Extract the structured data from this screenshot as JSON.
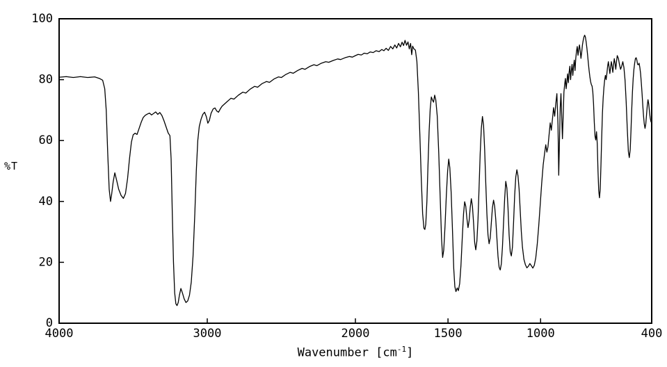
{
  "chart_data": {
    "type": "line",
    "title": "",
    "ylabel": "%T",
    "xlabel": "Wavenumber [cm-1]",
    "xlabel_parts": {
      "main": "Wavenumber [cm",
      "sup": "-1",
      "close": "]"
    },
    "x_axis": {
      "max": 4000,
      "break": 2000,
      "min": 400,
      "reversed": true,
      "scale_note": "split linear axis: 4000-2000 on left half, 2000-400 on right half",
      "ticks": [
        4000,
        3000,
        2000,
        1500,
        1000,
        400
      ]
    },
    "y_axis": {
      "min": 0,
      "max": 100,
      "ticks": [
        0,
        20,
        40,
        60,
        80,
        100
      ]
    },
    "grid": false,
    "legend": false,
    "line_color": "#000000",
    "frame_color": "#000000",
    "background": "#ffffff",
    "points": [
      [
        4000,
        80.8
      ],
      [
        3952,
        81
      ],
      [
        3904,
        80.7
      ],
      [
        3856,
        81
      ],
      [
        3808,
        80.7
      ],
      [
        3760,
        80.9
      ],
      [
        3728,
        80.4
      ],
      [
        3706,
        79.8
      ],
      [
        3692,
        77
      ],
      [
        3682,
        70
      ],
      [
        3672,
        56
      ],
      [
        3662,
        44
      ],
      [
        3653,
        40
      ],
      [
        3645,
        42.5
      ],
      [
        3635,
        46.5
      ],
      [
        3624,
        49.4
      ],
      [
        3612,
        47
      ],
      [
        3598,
        44
      ],
      [
        3582,
        42
      ],
      [
        3566,
        41
      ],
      [
        3552,
        42.6
      ],
      [
        3538,
        47.5
      ],
      [
        3525,
        54
      ],
      [
        3512,
        59.5
      ],
      [
        3500,
        61.9
      ],
      [
        3487,
        62.4
      ],
      [
        3474,
        62
      ],
      [
        3460,
        64
      ],
      [
        3446,
        66
      ],
      [
        3432,
        67.6
      ],
      [
        3418,
        68.3
      ],
      [
        3404,
        68.7
      ],
      [
        3390,
        69
      ],
      [
        3376,
        68.4
      ],
      [
        3362,
        68.9
      ],
      [
        3348,
        69.4
      ],
      [
        3334,
        68.6
      ],
      [
        3320,
        69.2
      ],
      [
        3306,
        68.2
      ],
      [
        3292,
        66.5
      ],
      [
        3278,
        64.5
      ],
      [
        3264,
        62.5
      ],
      [
        3252,
        61.6
      ],
      [
        3244,
        54
      ],
      [
        3236,
        36
      ],
      [
        3228,
        20
      ],
      [
        3220,
        10
      ],
      [
        3212,
        6.4
      ],
      [
        3204,
        5.8
      ],
      [
        3196,
        6.8
      ],
      [
        3188,
        9.2
      ],
      [
        3178,
        11.4
      ],
      [
        3168,
        10
      ],
      [
        3156,
        8
      ],
      [
        3144,
        6.8
      ],
      [
        3132,
        7.3
      ],
      [
        3120,
        9.2
      ],
      [
        3108,
        13.5
      ],
      [
        3096,
        22
      ],
      [
        3084,
        36
      ],
      [
        3074,
        50
      ],
      [
        3064,
        60
      ],
      [
        3054,
        64.6
      ],
      [
        3042,
        67
      ],
      [
        3030,
        68.6
      ],
      [
        3018,
        69.3
      ],
      [
        3006,
        67.8
      ],
      [
        2996,
        65.7
      ],
      [
        2986,
        66.6
      ],
      [
        2974,
        69
      ],
      [
        2960,
        70.4
      ],
      [
        2948,
        70.7
      ],
      [
        2936,
        69.7
      ],
      [
        2924,
        69.3
      ],
      [
        2912,
        70.4
      ],
      [
        2900,
        71.3
      ],
      [
        2870,
        72.6
      ],
      [
        2840,
        73.9
      ],
      [
        2820,
        73.6
      ],
      [
        2790,
        74.9
      ],
      [
        2760,
        75.9
      ],
      [
        2740,
        75.6
      ],
      [
        2710,
        76.9
      ],
      [
        2680,
        77.8
      ],
      [
        2660,
        77.5
      ],
      [
        2630,
        78.7
      ],
      [
        2600,
        79.4
      ],
      [
        2580,
        79.1
      ],
      [
        2550,
        80.2
      ],
      [
        2520,
        80.9
      ],
      [
        2500,
        80.7
      ],
      [
        2470,
        81.7
      ],
      [
        2440,
        82.4
      ],
      [
        2420,
        82.1
      ],
      [
        2390,
        83
      ],
      [
        2360,
        83.7
      ],
      [
        2340,
        83.4
      ],
      [
        2310,
        84.3
      ],
      [
        2280,
        84.9
      ],
      [
        2260,
        84.6
      ],
      [
        2230,
        85.4
      ],
      [
        2200,
        85.9
      ],
      [
        2180,
        85.7
      ],
      [
        2150,
        86.3
      ],
      [
        2120,
        86.8
      ],
      [
        2100,
        86.6
      ],
      [
        2070,
        87.2
      ],
      [
        2040,
        87.6
      ],
      [
        2020,
        87.4
      ],
      [
        2000,
        87.9
      ],
      [
        1985,
        88.3
      ],
      [
        1968,
        88.1
      ],
      [
        1952,
        88.7
      ],
      [
        1936,
        88.5
      ],
      [
        1920,
        89.1
      ],
      [
        1904,
        88.9
      ],
      [
        1888,
        89.5
      ],
      [
        1872,
        89.2
      ],
      [
        1858,
        89.9
      ],
      [
        1846,
        89.5
      ],
      [
        1834,
        90.3
      ],
      [
        1822,
        89.6
      ],
      [
        1810,
        90.9
      ],
      [
        1798,
        90.1
      ],
      [
        1787,
        91.4
      ],
      [
        1777,
        90.4
      ],
      [
        1767,
        91.9
      ],
      [
        1757,
        90.8
      ],
      [
        1748,
        92.3
      ],
      [
        1740,
        91.2
      ],
      [
        1732,
        92.9
      ],
      [
        1724,
        91.3
      ],
      [
        1716,
        92.4
      ],
      [
        1709,
        90.1
      ],
      [
        1702,
        91.9
      ],
      [
        1696,
        88.2
      ],
      [
        1691,
        91
      ],
      [
        1685,
        90.2
      ],
      [
        1676,
        89.7
      ],
      [
        1668,
        86
      ],
      [
        1660,
        76
      ],
      [
        1652,
        62
      ],
      [
        1644,
        47
      ],
      [
        1637,
        36
      ],
      [
        1630,
        31.2
      ],
      [
        1625,
        30.8
      ],
      [
        1620,
        32.5
      ],
      [
        1614,
        40
      ],
      [
        1608,
        52
      ],
      [
        1602,
        63
      ],
      [
        1596,
        70.5
      ],
      [
        1590,
        74.3
      ],
      [
        1584,
        73.3
      ],
      [
        1578,
        72.6
      ],
      [
        1572,
        74.9
      ],
      [
        1566,
        73.4
      ],
      [
        1558,
        68
      ],
      [
        1550,
        56
      ],
      [
        1542,
        41
      ],
      [
        1535,
        28
      ],
      [
        1529,
        21.6
      ],
      [
        1523,
        24
      ],
      [
        1516,
        32
      ],
      [
        1509,
        42
      ],
      [
        1502,
        50
      ],
      [
        1496,
        53.9
      ],
      [
        1490,
        51
      ],
      [
        1483,
        43
      ],
      [
        1476,
        31
      ],
      [
        1469,
        18
      ],
      [
        1463,
        12
      ],
      [
        1457,
        10.4
      ],
      [
        1450,
        11.6
      ],
      [
        1444,
        10.7
      ],
      [
        1437,
        13
      ],
      [
        1430,
        19
      ],
      [
        1423,
        28
      ],
      [
        1416,
        36
      ],
      [
        1410,
        39.9
      ],
      [
        1404,
        38.4
      ],
      [
        1398,
        34.5
      ],
      [
        1392,
        31.4
      ],
      [
        1386,
        33.6
      ],
      [
        1380,
        38
      ],
      [
        1374,
        40.9
      ],
      [
        1368,
        38.4
      ],
      [
        1362,
        33
      ],
      [
        1356,
        26.5
      ],
      [
        1350,
        24.1
      ],
      [
        1344,
        27
      ],
      [
        1338,
        34
      ],
      [
        1332,
        45
      ],
      [
        1326,
        56
      ],
      [
        1320,
        64
      ],
      [
        1314,
        67.9
      ],
      [
        1308,
        65
      ],
      [
        1302,
        57
      ],
      [
        1296,
        46
      ],
      [
        1290,
        36
      ],
      [
        1284,
        29
      ],
      [
        1278,
        26.1
      ],
      [
        1272,
        28
      ],
      [
        1266,
        33
      ],
      [
        1260,
        38
      ],
      [
        1254,
        40.4
      ],
      [
        1248,
        38.4
      ],
      [
        1242,
        34
      ],
      [
        1236,
        28
      ],
      [
        1230,
        22
      ],
      [
        1224,
        18.4
      ],
      [
        1218,
        17.5
      ],
      [
        1212,
        19.5
      ],
      [
        1206,
        25
      ],
      [
        1200,
        33
      ],
      [
        1194,
        41
      ],
      [
        1188,
        46.6
      ],
      [
        1182,
        44.4
      ],
      [
        1176,
        38
      ],
      [
        1170,
        29
      ],
      [
        1164,
        23.5
      ],
      [
        1158,
        22.1
      ],
      [
        1152,
        25
      ],
      [
        1146,
        33
      ],
      [
        1140,
        42
      ],
      [
        1134,
        48
      ],
      [
        1128,
        50.4
      ],
      [
        1122,
        48.4
      ],
      [
        1116,
        44
      ],
      [
        1110,
        37
      ],
      [
        1104,
        30
      ],
      [
        1098,
        25
      ],
      [
        1090,
        21
      ],
      [
        1082,
        19.2
      ],
      [
        1074,
        18.2
      ],
      [
        1066,
        18.7
      ],
      [
        1058,
        19.6
      ],
      [
        1050,
        18.9
      ],
      [
        1042,
        18.1
      ],
      [
        1034,
        19
      ],
      [
        1026,
        21.5
      ],
      [
        1018,
        26
      ],
      [
        1010,
        32
      ],
      [
        1002,
        39
      ],
      [
        994,
        46
      ],
      [
        986,
        52
      ],
      [
        978,
        56
      ],
      [
        972,
        58.6
      ],
      [
        966,
        56.2
      ],
      [
        960,
        58
      ],
      [
        954,
        62
      ],
      [
        948,
        65.8
      ],
      [
        942,
        63.4
      ],
      [
        936,
        67
      ],
      [
        930,
        70.8
      ],
      [
        924,
        68
      ],
      [
        918,
        72
      ],
      [
        912,
        75.4
      ],
      [
        906,
        65
      ],
      [
        902,
        48.6
      ],
      [
        898,
        60
      ],
      [
        894,
        70.8
      ],
      [
        890,
        75.4
      ],
      [
        886,
        68
      ],
      [
        882,
        60.6
      ],
      [
        878,
        68
      ],
      [
        874,
        75.9
      ],
      [
        870,
        78.4
      ],
      [
        866,
        80.4
      ],
      [
        862,
        77
      ],
      [
        858,
        79.4
      ],
      [
        854,
        81.9
      ],
      [
        850,
        79
      ],
      [
        846,
        82.4
      ],
      [
        842,
        84.4
      ],
      [
        838,
        80
      ],
      [
        834,
        83
      ],
      [
        830,
        85
      ],
      [
        826,
        81.4
      ],
      [
        822,
        84.4
      ],
      [
        818,
        86.4
      ],
      [
        814,
        83
      ],
      [
        810,
        87
      ],
      [
        806,
        89.4
      ],
      [
        802,
        90.9
      ],
      [
        798,
        88
      ],
      [
        794,
        90
      ],
      [
        790,
        91.4
      ],
      [
        786,
        89.4
      ],
      [
        782,
        87
      ],
      [
        778,
        89
      ],
      [
        774,
        91.4
      ],
      [
        770,
        92.9
      ],
      [
        766,
        94
      ],
      [
        762,
        94.6
      ],
      [
        758,
        94
      ],
      [
        754,
        92.4
      ],
      [
        750,
        90.4
      ],
      [
        746,
        88
      ],
      [
        742,
        85.4
      ],
      [
        738,
        83
      ],
      [
        734,
        81
      ],
      [
        730,
        79.4
      ],
      [
        726,
        78.4
      ],
      [
        722,
        77.9
      ],
      [
        718,
        76
      ],
      [
        714,
        72
      ],
      [
        710,
        66
      ],
      [
        706,
        61.4
      ],
      [
        702,
        60.2
      ],
      [
        698,
        62.9
      ],
      [
        694,
        59
      ],
      [
        690,
        50
      ],
      [
        686,
        43.5
      ],
      [
        682,
        41.2
      ],
      [
        678,
        44
      ],
      [
        674,
        52
      ],
      [
        670,
        61
      ],
      [
        666,
        69
      ],
      [
        662,
        74
      ],
      [
        658,
        77.4
      ],
      [
        654,
        79.9
      ],
      [
        650,
        81.4
      ],
      [
        646,
        80
      ],
      [
        642,
        82
      ],
      [
        638,
        84.4
      ],
      [
        634,
        85.9
      ],
      [
        630,
        84
      ],
      [
        626,
        82
      ],
      [
        622,
        84
      ],
      [
        618,
        85.9
      ],
      [
        614,
        84.4
      ],
      [
        610,
        82.4
      ],
      [
        606,
        84.9
      ],
      [
        602,
        86.9
      ],
      [
        598,
        85.4
      ],
      [
        594,
        83.4
      ],
      [
        590,
        85.9
      ],
      [
        586,
        87.9
      ],
      [
        580,
        87
      ],
      [
        574,
        85
      ],
      [
        568,
        83.4
      ],
      [
        562,
        84.4
      ],
      [
        556,
        85.9
      ],
      [
        550,
        84
      ],
      [
        544,
        79.9
      ],
      [
        538,
        72.9
      ],
      [
        532,
        64
      ],
      [
        526,
        56.4
      ],
      [
        521,
        54.4
      ],
      [
        516,
        57
      ],
      [
        512,
        63
      ],
      [
        508,
        70
      ],
      [
        504,
        75.9
      ],
      [
        500,
        80.4
      ],
      [
        496,
        83.4
      ],
      [
        492,
        85.4
      ],
      [
        488,
        86.9
      ],
      [
        484,
        87.2
      ],
      [
        480,
        86.4
      ],
      [
        476,
        85
      ],
      [
        472,
        84.9
      ],
      [
        468,
        85.4
      ],
      [
        464,
        84
      ],
      [
        460,
        82
      ],
      [
        456,
        78.9
      ],
      [
        452,
        75.4
      ],
      [
        448,
        71.4
      ],
      [
        444,
        68
      ],
      [
        440,
        65.4
      ],
      [
        436,
        64
      ],
      [
        432,
        65.4
      ],
      [
        428,
        68.4
      ],
      [
        424,
        71.4
      ],
      [
        420,
        73.4
      ],
      [
        416,
        72
      ],
      [
        412,
        69.4
      ],
      [
        408,
        67.4
      ],
      [
        404,
        66.2
      ],
      [
        400,
        65.8
      ]
    ]
  }
}
